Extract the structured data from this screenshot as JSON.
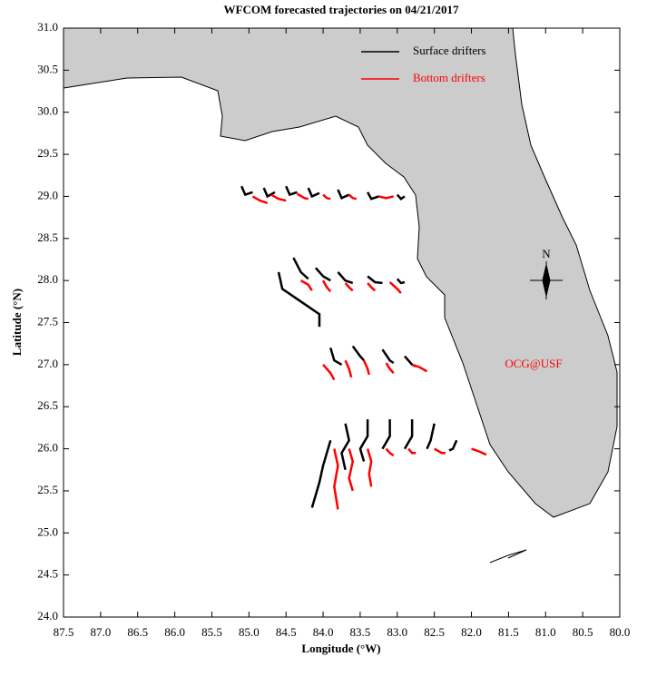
{
  "chart_data": {
    "type": "trajectory",
    "title": "WFCOM forecasted trajectories on 04/21/2017",
    "x_label": "Longitude (°W)",
    "y_label": "Latitude (°N)",
    "xlim": [
      87.5,
      80.0
    ],
    "xticks": [
      87.5,
      {
        "value": 87,
        "label": "87.0"
      },
      86.5,
      {
        "value": 86,
        "label": "86.0"
      },
      85.5,
      {
        "value": 85,
        "label": "85.0"
      },
      84.5,
      {
        "value": 84,
        "label": "84.0"
      },
      83.5,
      {
        "value": 83,
        "label": "83.0"
      },
      82.5,
      {
        "value": 82,
        "label": "82.0"
      },
      81.5,
      {
        "value": 81,
        "label": "81.0"
      },
      80.5,
      {
        "value": 80,
        "label": "80.0"
      }
    ],
    "ylim": [
      24.0,
      31.0
    ],
    "yticks": [
      {
        "value": 24,
        "label": "24.0"
      },
      24.5,
      {
        "value": 25,
        "label": "25.0"
      },
      25.5,
      {
        "value": 26,
        "label": "26.0"
      },
      26.5,
      {
        "value": 27,
        "label": "27.0"
      },
      27.5,
      {
        "value": 28,
        "label": "28.0"
      },
      28.5,
      {
        "value": 29,
        "label": "29.0"
      },
      29.5,
      {
        "value": 30,
        "label": "30.0"
      },
      30.5,
      {
        "value": 31,
        "label": "31.0"
      }
    ],
    "legend": "upper right",
    "annotation": "OCG@USF",
    "annotation_color": "#ff0000",
    "compass_label": "N",
    "series": [
      {
        "name": "Surface drifters",
        "color": "#000000",
        "tracks": [
          {
            "x": [
              85.1,
              85.05,
              84.95
            ],
            "y": [
              29.12,
              29.02,
              29.05
            ]
          },
          {
            "x": [
              84.8,
              84.75,
              84.65
            ],
            "y": [
              29.1,
              29.0,
              29.05
            ]
          },
          {
            "x": [
              84.5,
              84.45,
              84.35
            ],
            "y": [
              29.12,
              29.02,
              29.05
            ]
          },
          {
            "x": [
              84.2,
              84.15,
              84.05
            ],
            "y": [
              29.1,
              29.0,
              29.04
            ]
          },
          {
            "x": [
              83.8,
              83.75,
              83.65
            ],
            "y": [
              29.08,
              28.98,
              29.02
            ]
          },
          {
            "x": [
              83.4,
              83.35,
              83.25
            ],
            "y": [
              29.05,
              28.97,
              29.0
            ]
          },
          {
            "x": [
              83.0,
              82.95,
              82.9
            ],
            "y": [
              29.02,
              28.97,
              29.0
            ]
          },
          {
            "x": [
              84.4,
              84.3,
              84.2
            ],
            "y": [
              28.27,
              28.1,
              28.02
            ]
          },
          {
            "x": [
              84.6,
              84.55,
              84.3,
              84.05,
              84.05
            ],
            "y": [
              28.1,
              27.9,
              27.75,
              27.6,
              27.45
            ]
          },
          {
            "x": [
              84.1,
              84.0,
              83.9
            ],
            "y": [
              28.15,
              28.05,
              28.0
            ]
          },
          {
            "x": [
              83.8,
              83.7,
              83.6
            ],
            "y": [
              28.1,
              28.0,
              27.97
            ]
          },
          {
            "x": [
              83.4,
              83.3,
              83.2
            ],
            "y": [
              28.05,
              27.98,
              27.97
            ]
          },
          {
            "x": [
              83.0,
              82.95,
              82.9
            ],
            "y": [
              28.02,
              27.97,
              27.98
            ]
          },
          {
            "x": [
              83.9,
              83.85,
              83.75
            ],
            "y": [
              27.2,
              27.05,
              27.0
            ]
          },
          {
            "x": [
              83.6,
              83.5,
              83.45
            ],
            "y": [
              27.22,
              27.1,
              27.05
            ]
          },
          {
            "x": [
              83.2,
              83.1,
              83.05
            ],
            "y": [
              27.18,
              27.05,
              27.02
            ]
          },
          {
            "x": [
              82.9,
              82.8,
              82.75
            ],
            "y": [
              27.1,
              27.0,
              26.98
            ]
          },
          {
            "x": [
              83.9,
              84.0,
              84.05,
              84.15
            ],
            "y": [
              26.1,
              25.8,
              25.6,
              25.3
            ]
          },
          {
            "x": [
              83.7,
              83.65,
              83.75,
              83.7
            ],
            "y": [
              26.3,
              26.1,
              25.95,
              25.75
            ]
          },
          {
            "x": [
              83.4,
              83.4,
              83.5,
              83.45
            ],
            "y": [
              26.35,
              26.15,
              26.0,
              25.85
            ]
          },
          {
            "x": [
              83.1,
              83.1,
              83.2
            ],
            "y": [
              26.35,
              26.15,
              26.0
            ]
          },
          {
            "x": [
              82.8,
              82.8,
              82.9
            ],
            "y": [
              26.35,
              26.15,
              26.0
            ]
          },
          {
            "x": [
              82.5,
              82.55,
              82.6
            ],
            "y": [
              26.3,
              26.1,
              26.0
            ]
          },
          {
            "x": [
              82.2,
              82.25,
              82.3
            ],
            "y": [
              26.1,
              26.0,
              25.98
            ]
          }
        ]
      },
      {
        "name": "Bottom drifters",
        "color": "#ff0000",
        "tracks": [
          {
            "x": [
              84.95,
              84.85,
              84.75
            ],
            "y": [
              29.0,
              28.95,
              28.92
            ]
          },
          {
            "x": [
              84.7,
              84.6,
              84.5
            ],
            "y": [
              29.02,
              28.97,
              28.95
            ]
          },
          {
            "x": [
              84.35,
              84.25,
              84.2
            ],
            "y": [
              29.03,
              28.98,
              28.97
            ]
          },
          {
            "x": [
              84.0,
              83.95,
              83.9
            ],
            "y": [
              29.02,
              28.98,
              28.97
            ]
          },
          {
            "x": [
              83.65,
              83.6,
              83.55
            ],
            "y": [
              29.02,
              28.98,
              28.97
            ]
          },
          {
            "x": [
              83.25,
              83.15,
              83.05
            ],
            "y": [
              29.0,
              28.98,
              29.0
            ]
          },
          {
            "x": [
              84.3,
              84.2,
              84.15
            ],
            "y": [
              28.0,
              27.95,
              27.88
            ]
          },
          {
            "x": [
              84.0,
              83.95,
              83.9
            ],
            "y": [
              28.0,
              27.92,
              27.87
            ]
          },
          {
            "x": [
              83.7,
              83.65,
              83.6
            ],
            "y": [
              27.97,
              27.92,
              27.88
            ]
          },
          {
            "x": [
              83.4,
              83.35,
              83.3
            ],
            "y": [
              27.97,
              27.92,
              27.88
            ]
          },
          {
            "x": [
              83.1,
              83.0,
              82.95
            ],
            "y": [
              27.98,
              27.9,
              27.85
            ]
          },
          {
            "x": [
              84.0,
              83.9,
              83.85
            ],
            "y": [
              27.0,
              26.9,
              26.82
            ]
          },
          {
            "x": [
              83.7,
              83.65,
              83.62
            ],
            "y": [
              27.05,
              26.95,
              26.85
            ]
          },
          {
            "x": [
              83.45,
              83.4,
              83.38
            ],
            "y": [
              27.05,
              26.95,
              26.88
            ]
          },
          {
            "x": [
              83.15,
              83.1,
              83.05
            ],
            "y": [
              27.02,
              26.95,
              26.9
            ]
          },
          {
            "x": [
              82.8,
              82.7,
              82.6
            ],
            "y": [
              27.0,
              26.97,
              26.92
            ]
          },
          {
            "x": [
              83.85,
              83.8,
              83.85,
              83.8
            ],
            "y": [
              26.0,
              25.8,
              25.55,
              25.28
            ]
          },
          {
            "x": [
              83.65,
              83.6,
              83.65,
              83.6
            ],
            "y": [
              26.0,
              25.85,
              25.65,
              25.5
            ]
          },
          {
            "x": [
              83.4,
              83.35,
              83.38,
              83.35
            ],
            "y": [
              26.0,
              25.85,
              25.7,
              25.55
            ]
          },
          {
            "x": [
              83.15,
              83.1,
              83.05
            ],
            "y": [
              26.0,
              25.95,
              25.92
            ]
          },
          {
            "x": [
              82.85,
              82.8,
              82.75
            ],
            "y": [
              26.0,
              25.95,
              25.95
            ]
          },
          {
            "x": [
              82.5,
              82.4,
              82.35
            ],
            "y": [
              26.0,
              25.95,
              25.95
            ]
          },
          {
            "x": [
              82.0,
              81.9,
              81.8
            ],
            "y": [
              26.0,
              25.97,
              25.93
            ]
          }
        ]
      }
    ]
  }
}
